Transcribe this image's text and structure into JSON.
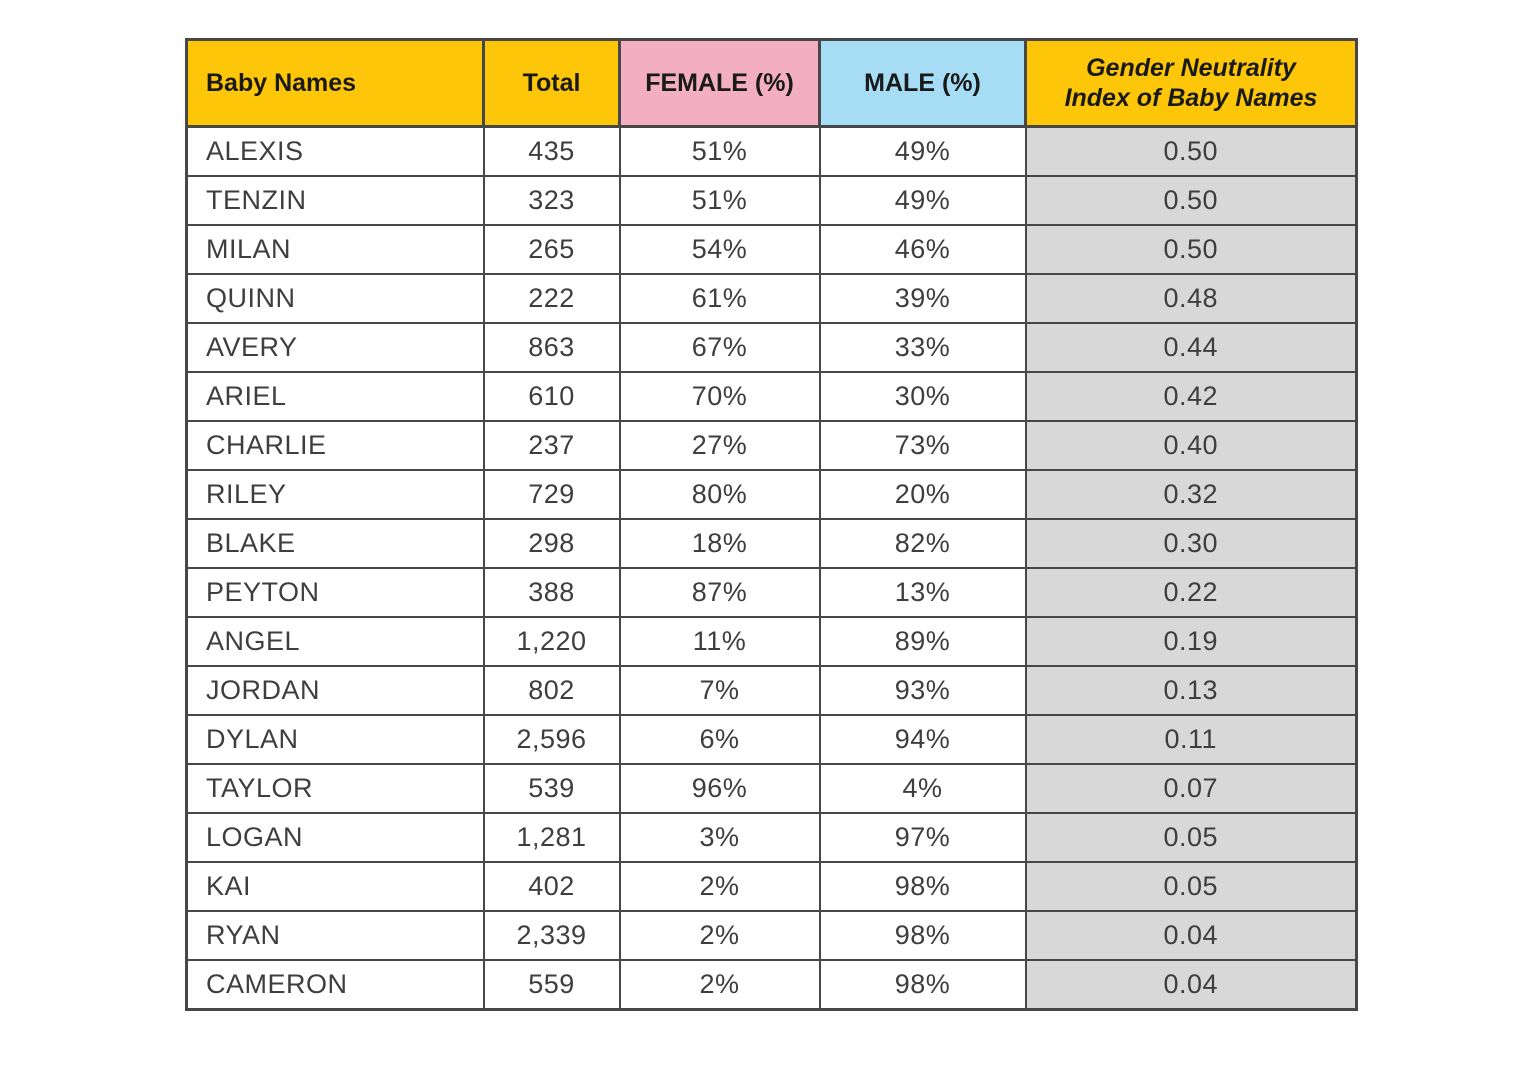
{
  "chart_data": {
    "type": "table",
    "columns": [
      {
        "label": "Baby Names",
        "align": "left",
        "bg": "#FDC609"
      },
      {
        "label": "Total",
        "align": "center",
        "bg": "#FDC609"
      },
      {
        "label": "FEMALE (%)",
        "align": "center",
        "bg": "#F3AFC1"
      },
      {
        "label": "MALE (%)",
        "align": "center",
        "bg": "#A6DDF5"
      },
      {
        "label": "Gender Neutrality\nIndex of Baby Names",
        "align": "center",
        "bg": "#FDC609",
        "italic": true,
        "value_bg": "#D8D8D8"
      }
    ],
    "rows": [
      [
        "ALEXIS",
        "435",
        "51%",
        "49%",
        "0.50"
      ],
      [
        "TENZIN",
        "323",
        "51%",
        "49%",
        "0.50"
      ],
      [
        "MILAN",
        "265",
        "54%",
        "46%",
        "0.50"
      ],
      [
        "QUINN",
        "222",
        "61%",
        "39%",
        "0.48"
      ],
      [
        "AVERY",
        "863",
        "67%",
        "33%",
        "0.44"
      ],
      [
        "ARIEL",
        "610",
        "70%",
        "30%",
        "0.42"
      ],
      [
        "CHARLIE",
        "237",
        "27%",
        "73%",
        "0.40"
      ],
      [
        "RILEY",
        "729",
        "80%",
        "20%",
        "0.32"
      ],
      [
        "BLAKE",
        "298",
        "18%",
        "82%",
        "0.30"
      ],
      [
        "PEYTON",
        "388",
        "87%",
        "13%",
        "0.22"
      ],
      [
        "ANGEL",
        "1,220",
        "11%",
        "89%",
        "0.19"
      ],
      [
        "JORDAN",
        "802",
        "7%",
        "93%",
        "0.13"
      ],
      [
        "DYLAN",
        "2,596",
        "6%",
        "94%",
        "0.11"
      ],
      [
        "TAYLOR",
        "539",
        "96%",
        "4%",
        "0.07"
      ],
      [
        "LOGAN",
        "1,281",
        "3%",
        "97%",
        "0.05"
      ],
      [
        "KAI",
        "402",
        "2%",
        "98%",
        "0.05"
      ],
      [
        "RYAN",
        "2,339",
        "2%",
        "98%",
        "0.04"
      ],
      [
        "CAMERON",
        "559",
        "2%",
        "98%",
        "0.04"
      ]
    ],
    "colors": {
      "header_gold": "#FDC609",
      "header_pink": "#F3AFC1",
      "header_blue": "#A6DDF5",
      "index_column_gray": "#D8D8D8",
      "border": "#474747"
    }
  }
}
